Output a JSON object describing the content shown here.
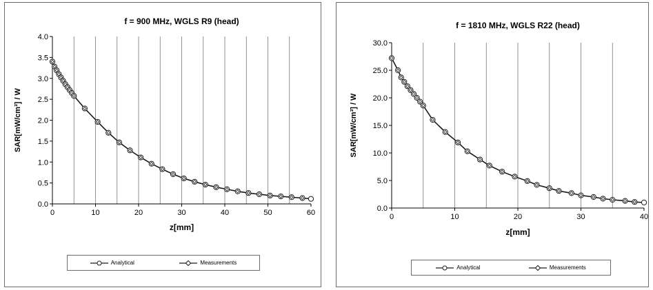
{
  "colors": {
    "line": "#1a1a1a",
    "grid": "#777777",
    "analytical_marker_fill": "#ffffff",
    "measurement_marker_fill": "#ffffff"
  },
  "chart_data": [
    {
      "type": "line",
      "title": "f = 900 MHz, WGLS R9 (head)",
      "xlabel": "z[mm]",
      "ylabel": "SAR[mW/cm³] / W",
      "xlim": [
        0,
        60
      ],
      "ylim": [
        0,
        4.0
      ],
      "x_ticks": [
        "0",
        "10",
        "20",
        "30",
        "40",
        "50",
        "60"
      ],
      "y_ticks": [
        "0.0",
        "0.5",
        "1.0",
        "1.5",
        "2.0",
        "2.5",
        "3.0",
        "3.5",
        "4.0"
      ],
      "x_tick_values": [
        0,
        10,
        20,
        30,
        40,
        50,
        60
      ],
      "y_tick_values": [
        0,
        0.5,
        1.0,
        1.5,
        2.0,
        2.5,
        3.0,
        3.5,
        4.0
      ],
      "vertical_grid": true,
      "vgrid_values": [
        5,
        10,
        15,
        20,
        25,
        30,
        35,
        40,
        45,
        50,
        55
      ],
      "horizontal_grid": false,
      "legend_position": "bottom",
      "series": [
        {
          "name": "Analytical",
          "marker": "circle",
          "x": [
            0,
            0.5,
            1,
            1.5,
            2,
            2.5,
            3,
            3.5,
            4,
            4.5,
            5,
            7.5,
            10.5,
            13,
            15.5,
            18,
            20.5,
            23,
            25.5,
            28,
            30.5,
            33,
            35.5,
            38,
            40.5,
            43,
            45.5,
            48,
            50.5,
            53,
            55.5,
            58,
            60
          ],
          "y": [
            3.4,
            3.28,
            3.19,
            3.1,
            3.02,
            2.94,
            2.86,
            2.79,
            2.72,
            2.65,
            2.58,
            2.28,
            1.96,
            1.7,
            1.47,
            1.28,
            1.11,
            0.96,
            0.83,
            0.71,
            0.61,
            0.53,
            0.46,
            0.4,
            0.35,
            0.3,
            0.26,
            0.23,
            0.2,
            0.18,
            0.16,
            0.14,
            0.12
          ]
        },
        {
          "name": "Measurements",
          "marker": "diamond",
          "x": [
            0,
            0.5,
            1,
            1.5,
            2,
            2.5,
            3,
            3.5,
            4,
            4.5,
            5,
            7.5,
            10.5,
            13,
            15.5,
            18,
            20.5,
            23,
            25.5,
            28,
            30.5,
            33,
            35.5,
            38,
            40.5,
            43,
            45.5,
            48,
            50.5,
            53,
            55.5,
            58
          ],
          "y": [
            3.4,
            3.28,
            3.19,
            3.1,
            3.02,
            2.94,
            2.86,
            2.79,
            2.72,
            2.65,
            2.58,
            2.28,
            1.96,
            1.7,
            1.47,
            1.28,
            1.11,
            0.96,
            0.83,
            0.71,
            0.61,
            0.53,
            0.46,
            0.4,
            0.35,
            0.3,
            0.26,
            0.23,
            0.2,
            0.18,
            0.16,
            0.14
          ]
        }
      ]
    },
    {
      "type": "line",
      "title": "f = 1810 MHz, WGLS R22 (head)",
      "xlabel": "z[mm]",
      "ylabel": "SAR[mW/cm³] / W",
      "xlim": [
        0,
        40
      ],
      "ylim": [
        0,
        30.0
      ],
      "x_ticks": [
        "0",
        "10",
        "20",
        "30",
        "40"
      ],
      "y_ticks": [
        "0.0",
        "5.0",
        "10.0",
        "15.0",
        "20.0",
        "25.0",
        "30.0"
      ],
      "x_tick_values": [
        0,
        10,
        20,
        30,
        40
      ],
      "y_tick_values": [
        0,
        5,
        10,
        15,
        20,
        25,
        30
      ],
      "vertical_grid": true,
      "vgrid_values": [
        5,
        10,
        15,
        20,
        25,
        30,
        35
      ],
      "horizontal_grid": false,
      "legend_position": "bottom",
      "series": [
        {
          "name": "Analytical",
          "marker": "circle",
          "x": [
            0,
            1,
            1.5,
            2,
            2.5,
            3,
            3.5,
            4,
            4.5,
            5,
            6.5,
            8.5,
            10.5,
            12,
            14,
            15.5,
            17.5,
            19.5,
            21.5,
            23,
            25,
            26.5,
            28.5,
            30,
            32,
            33.5,
            35,
            37,
            38.5,
            40
          ],
          "y": [
            27.2,
            25.0,
            23.7,
            22.9,
            22.1,
            21.4,
            20.7,
            20.0,
            19.3,
            18.6,
            16.0,
            13.8,
            11.9,
            10.3,
            8.8,
            7.7,
            6.6,
            5.7,
            4.9,
            4.2,
            3.6,
            3.1,
            2.7,
            2.3,
            2.0,
            1.7,
            1.5,
            1.3,
            1.1,
            1.0
          ]
        },
        {
          "name": "Measurements",
          "marker": "diamond",
          "x": [
            0,
            1,
            1.5,
            2,
            2.5,
            3,
            3.5,
            4,
            4.5,
            5,
            6.5,
            8.5,
            10.5,
            12,
            14,
            15.5,
            17.5,
            19.5,
            21.5,
            23,
            25,
            26.5,
            28.5,
            30,
            32,
            33.5,
            35,
            37,
            38.5
          ],
          "y": [
            27.2,
            25.0,
            23.7,
            22.9,
            22.1,
            21.4,
            20.7,
            20.0,
            19.3,
            18.6,
            16.0,
            13.8,
            11.9,
            10.3,
            8.8,
            7.7,
            6.6,
            5.7,
            4.9,
            4.2,
            3.6,
            3.1,
            2.7,
            2.3,
            2.0,
            1.7,
            1.5,
            1.3,
            1.1
          ]
        }
      ]
    }
  ]
}
